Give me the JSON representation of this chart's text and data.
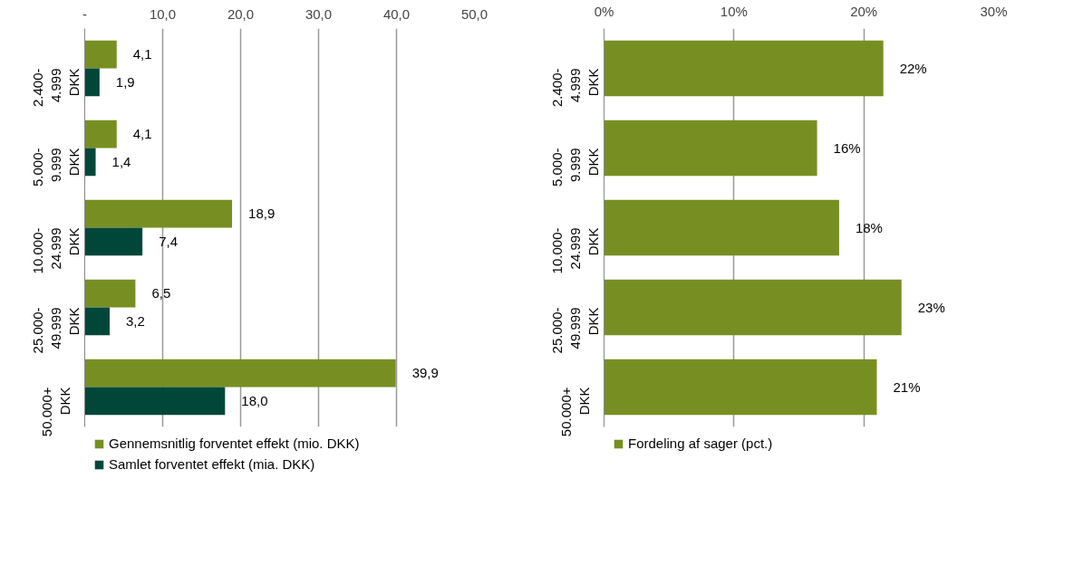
{
  "chart_data": [
    {
      "type": "bar",
      "orientation": "horizontal",
      "categories": [
        "2.400- 4.999 DKK",
        "5.000- 9.999 DKK",
        "10.000- 24.999 DKK",
        "25.000- 49.999 DKK",
        "50.000+ DKK"
      ],
      "series": [
        {
          "name": "Gennemsnitlig forventet effekt (mio. DKK)",
          "color": "#778f22",
          "values": [
            4.1,
            4.1,
            18.9,
            6.5,
            39.9
          ],
          "value_labels": [
            "4,1",
            "4,1",
            "18,9",
            "6,5",
            "39,9"
          ]
        },
        {
          "name": "Samlet forventet effekt (mia. DKK)",
          "color": "#00473a",
          "values": [
            1.9,
            1.4,
            7.4,
            3.2,
            18.0
          ],
          "value_labels": [
            "1,9",
            "1,4",
            "7,4",
            "3,2",
            "18,0"
          ]
        }
      ],
      "xlim": [
        0,
        50
      ],
      "xticks": [
        {
          "value": 0,
          "label": "-"
        },
        {
          "value": 10,
          "label": "10,0"
        },
        {
          "value": 20,
          "label": "20,0"
        },
        {
          "value": 30,
          "label": "30,0"
        },
        {
          "value": 40,
          "label": "40,0"
        },
        {
          "value": 50,
          "label": "50,0"
        }
      ],
      "grid": "x",
      "legend": "bottom"
    },
    {
      "type": "bar",
      "orientation": "horizontal",
      "categories": [
        "2.400- 4.999 DKK",
        "5.000- 9.999 DKK",
        "10.000- 24.999 DKK",
        "25.000- 49.999 DKK",
        "50.000+ DKK"
      ],
      "series": [
        {
          "name": "Fordeling af sager (pct.)",
          "color": "#778f22",
          "values": [
            21.5,
            16.4,
            18.1,
            22.9,
            21.0
          ],
          "value_labels": [
            "22%",
            "16%",
            "18%",
            "23%",
            "21%"
          ]
        }
      ],
      "xlim": [
        0,
        30
      ],
      "xticks": [
        {
          "value": 0,
          "label": "0%"
        },
        {
          "value": 10,
          "label": "10%"
        },
        {
          "value": 20,
          "label": "20%"
        },
        {
          "value": 30,
          "label": "30%"
        }
      ],
      "grid": "x",
      "legend": "bottom"
    }
  ]
}
